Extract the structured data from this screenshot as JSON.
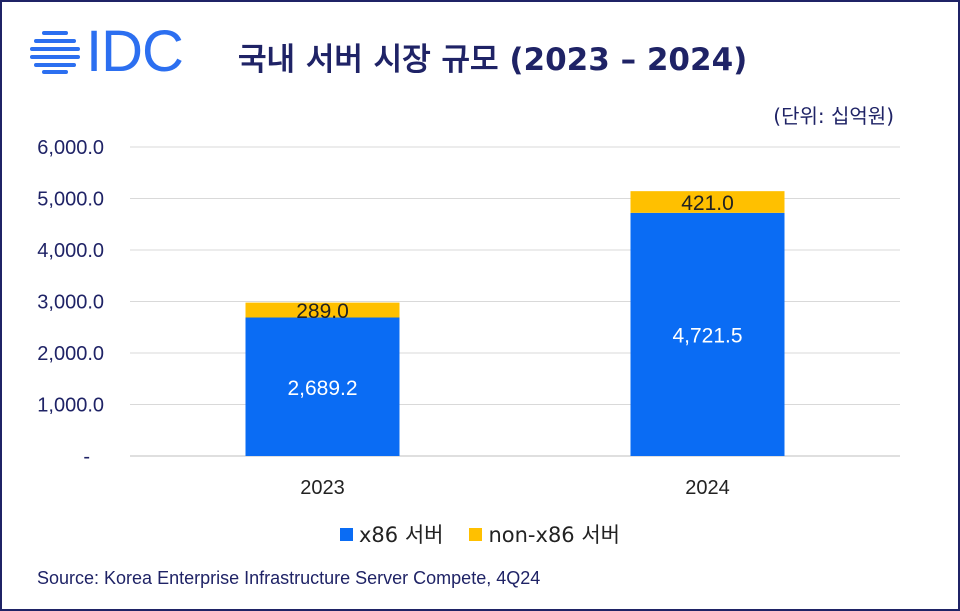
{
  "logo_text": "IDC",
  "title": "국내 서버 시장 규모 (2023 – 2024)",
  "unit_label": "(단위: 십억원)",
  "source": "Source: Korea Enterprise Infrastructure Server Compete, 4Q24",
  "colors": {
    "x86": "#0a6cf4",
    "non_x86": "#ffc000",
    "title": "#1f2366",
    "logo": "#2c6ff0"
  },
  "chart_data": {
    "type": "bar",
    "stacked": true,
    "categories": [
      "2023",
      "2024"
    ],
    "series": [
      {
        "name": "x86 서버",
        "values": [
          2689.2,
          4721.5
        ],
        "labels": [
          "2,689.2",
          "4,721.5"
        ]
      },
      {
        "name": "non-x86 서버",
        "values": [
          289.0,
          421.0
        ],
        "labels": [
          "289.0",
          "421.0"
        ]
      }
    ],
    "ylim": [
      0,
      6000
    ],
    "yticks": [
      "-",
      "1,000.0",
      "2,000.0",
      "3,000.0",
      "4,000.0",
      "5,000.0",
      "6,000.0"
    ],
    "grid": true,
    "legend": "bottom"
  }
}
